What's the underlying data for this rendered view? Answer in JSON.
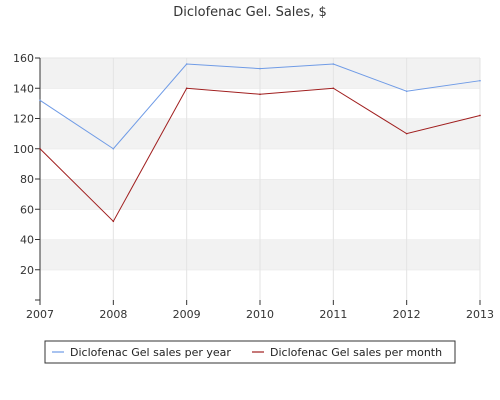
{
  "chart_data": {
    "type": "line",
    "title": "Diclofenac Gel. Sales, $",
    "xlabel": "",
    "ylabel": "",
    "categories": [
      "2007",
      "2008",
      "2009",
      "2010",
      "2011",
      "2012",
      "2013"
    ],
    "yticks": [
      "20",
      "40",
      "60",
      "80",
      "100",
      "120",
      "140",
      "160"
    ],
    "ylim": [
      0,
      160
    ],
    "grid": true,
    "legend_position": "bottom",
    "series": [
      {
        "name": "Diclofenac Gel sales per year",
        "color": "#6f9be6",
        "values": [
          132,
          100,
          156,
          153,
          156,
          138,
          145
        ]
      },
      {
        "name": "Diclofenac Gel sales per month",
        "color": "#a01e1e",
        "values": [
          100,
          52,
          140,
          136,
          140,
          110,
          122
        ]
      }
    ]
  }
}
